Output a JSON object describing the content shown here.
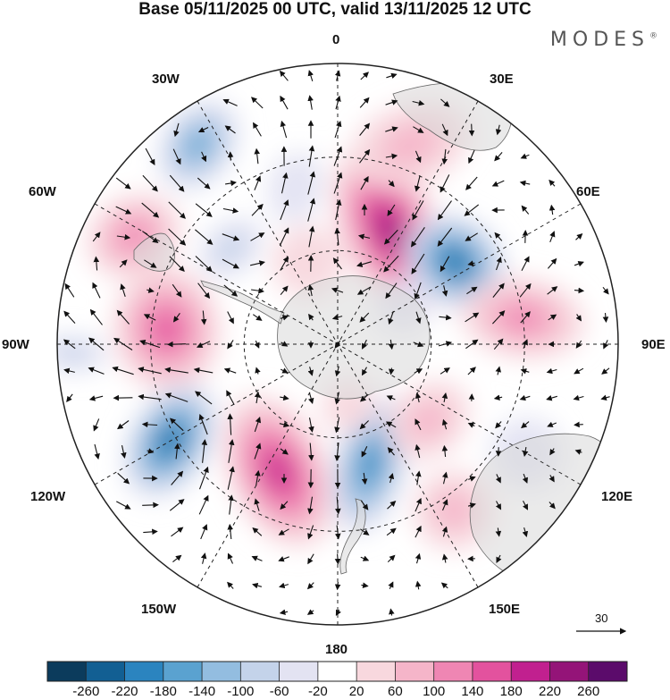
{
  "title": "Base 05/11/2025 00 UTC, valid 13/11/2025 12 UTC",
  "logo": "MODES",
  "logo_mark": "®",
  "longitude_labels": {
    "n": "0",
    "ne30": "30E",
    "e60": "60E",
    "e90": "90E",
    "e120": "120E",
    "e150": "150E",
    "s": "180",
    "w150": "150W",
    "w120": "120W",
    "w90": "90W",
    "w60": "60W",
    "w30": "30W"
  },
  "reference_vector": {
    "label": "30"
  },
  "colorbar": {
    "colors": [
      "#0b3b5c",
      "#125f93",
      "#2b84bf",
      "#5aa2d0",
      "#93bde0",
      "#c4d3ea",
      "#e3e3f2",
      "#ffffff",
      "#f8d8de",
      "#f5b5c9",
      "#ef86b3",
      "#e3529e",
      "#c1208f",
      "#941478",
      "#5b0b6b"
    ],
    "tick_labels": [
      "-260",
      "-220",
      "-180",
      "-140",
      "-100",
      "-60",
      "-20",
      "20",
      "60",
      "100",
      "140",
      "180",
      "220",
      "260"
    ]
  },
  "anomaly_centers": [
    {
      "lon": 25,
      "colat_deg": 40,
      "value": 240,
      "shape": [
        55,
        100
      ]
    },
    {
      "lon": 55,
      "colat_deg": 46,
      "value": -240,
      "shape": [
        50,
        60
      ]
    },
    {
      "lon": 82,
      "colat_deg": 60,
      "value": 110,
      "shape": [
        45,
        70
      ]
    },
    {
      "lon": 20,
      "colat_deg": 68,
      "value": 70,
      "shape": [
        70,
        45
      ]
    },
    {
      "lon": -35,
      "colat_deg": 78,
      "value": -160,
      "shape": [
        40,
        55
      ]
    },
    {
      "lon": -15,
      "colat_deg": 52,
      "value": -60,
      "shape": [
        30,
        40
      ]
    },
    {
      "lon": -48,
      "colat_deg": 46,
      "value": -100,
      "shape": [
        28,
        40
      ]
    },
    {
      "lon": -62,
      "colat_deg": 74,
      "value": 110,
      "shape": [
        45,
        55
      ]
    },
    {
      "lon": -85,
      "colat_deg": 55,
      "value": 180,
      "shape": [
        70,
        60
      ]
    },
    {
      "lon": -92,
      "colat_deg": 85,
      "value": -80,
      "shape": [
        20,
        40
      ]
    },
    {
      "lon": -120,
      "colat_deg": 62,
      "value": -230,
      "shape": [
        70,
        45
      ]
    },
    {
      "lon": -155,
      "colat_deg": 45,
      "value": 200,
      "shape": [
        55,
        90
      ]
    },
    {
      "lon": 165,
      "colat_deg": 40,
      "value": -200,
      "shape": [
        40,
        80
      ]
    },
    {
      "lon": 130,
      "colat_deg": 38,
      "value": 70,
      "shape": [
        40,
        50
      ]
    },
    {
      "lon": 145,
      "colat_deg": 65,
      "value": 80,
      "shape": [
        45,
        45
      ]
    },
    {
      "lon": 120,
      "colat_deg": 70,
      "value": -50,
      "shape": [
        40,
        40
      ]
    },
    {
      "lon": -20,
      "colat_deg": 28,
      "value": 40,
      "shape": [
        40,
        40
      ]
    },
    {
      "lon": 170,
      "colat_deg": 20,
      "value": 30,
      "shape": [
        30,
        30
      ]
    },
    {
      "lon": 60,
      "colat_deg": 24,
      "value": -40,
      "shape": [
        30,
        30
      ]
    }
  ]
}
